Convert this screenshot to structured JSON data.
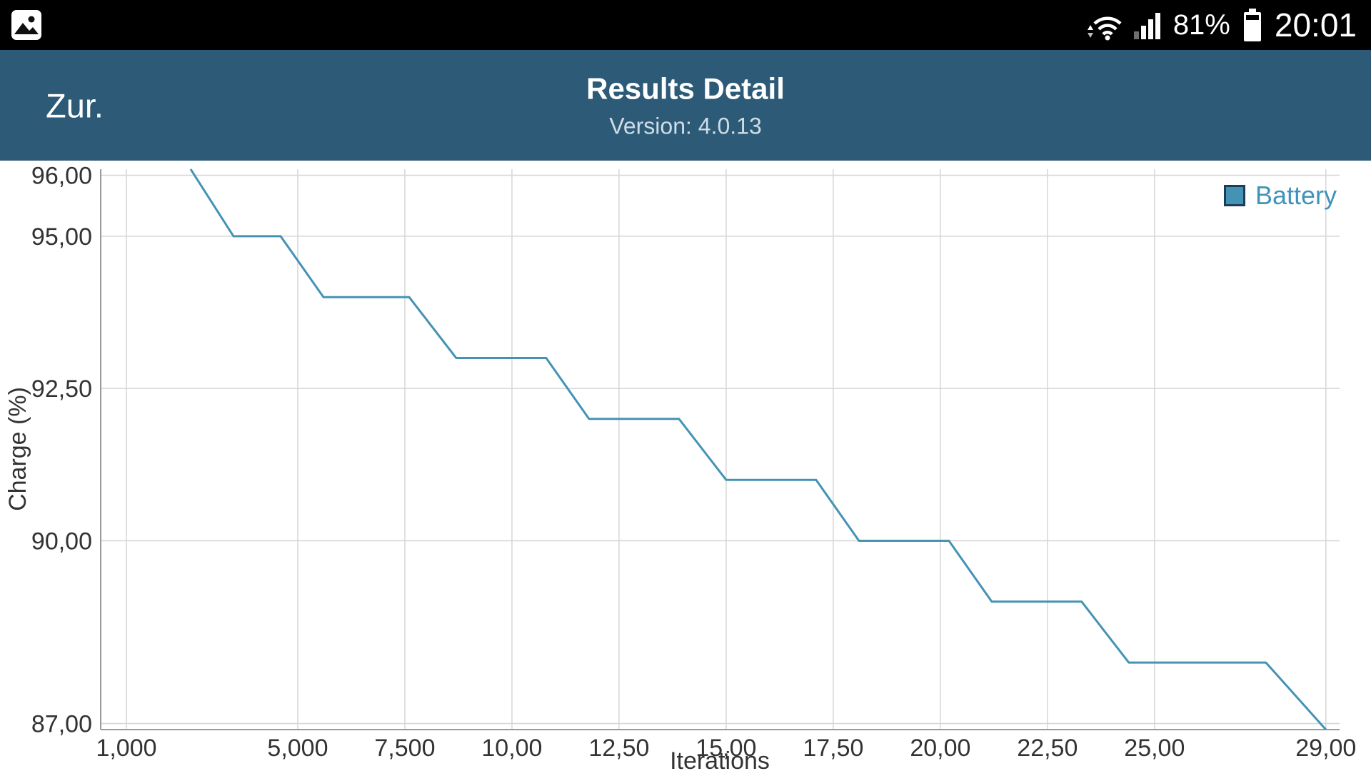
{
  "status_bar": {
    "time": "20:01",
    "battery_percent": "81%",
    "icons": {
      "left": "gallery-notification-icon",
      "right": [
        "wifi-icon",
        "cellular-signal-icon",
        "battery-icon"
      ]
    }
  },
  "header": {
    "back_label": "Zur.",
    "title": "Results Detail",
    "subtitle": "Version: 4.0.13",
    "background": "#2d5a77"
  },
  "chart_data": {
    "type": "line",
    "title": "",
    "xlabel": "Iterations",
    "ylabel": "Charge (%)",
    "xlim": [
      400,
      29320
    ],
    "ylim": [
      86.9,
      96.1
    ],
    "grid": true,
    "legend_position": "top-right",
    "legend": [
      {
        "label": "Battery",
        "color": "#4493b5"
      }
    ],
    "colors": {
      "grid": "#d6d6d6",
      "axis": "#9a9a9a",
      "tick_text": "#333333",
      "legend_text": "#3f93b8",
      "background": "#ffffff"
    },
    "x_ticks": [
      {
        "value": 1000,
        "label": "1,000"
      },
      {
        "value": 5000,
        "label": "5,000"
      },
      {
        "value": 7500,
        "label": "7,500"
      },
      {
        "value": 10000,
        "label": "10,00"
      },
      {
        "value": 12500,
        "label": "12,50"
      },
      {
        "value": 15000,
        "label": "15,00"
      },
      {
        "value": 17500,
        "label": "17,50"
      },
      {
        "value": 20000,
        "label": "20,00"
      },
      {
        "value": 22500,
        "label": "22,50"
      },
      {
        "value": 25000,
        "label": "25,00"
      },
      {
        "value": 29000,
        "label": "29,00"
      }
    ],
    "y_ticks": [
      {
        "value": 96,
        "label": "96,00"
      },
      {
        "value": 95,
        "label": "95,00"
      },
      {
        "value": 92.5,
        "label": "92,50"
      },
      {
        "value": 90,
        "label": "90,00"
      },
      {
        "value": 87,
        "label": "87,00"
      }
    ],
    "series": [
      {
        "name": "Battery",
        "color": "#4493b5",
        "points": [
          [
            2500,
            96.1
          ],
          [
            3500,
            95
          ],
          [
            4600,
            95
          ],
          [
            5600,
            94
          ],
          [
            7600,
            94
          ],
          [
            8700,
            93
          ],
          [
            10800,
            93
          ],
          [
            11800,
            92
          ],
          [
            13900,
            92
          ],
          [
            15000,
            91
          ],
          [
            17100,
            91
          ],
          [
            18100,
            90
          ],
          [
            20200,
            90
          ],
          [
            21200,
            89
          ],
          [
            23300,
            89
          ],
          [
            24400,
            88
          ],
          [
            27600,
            88
          ],
          [
            29000,
            86.9
          ]
        ]
      }
    ]
  }
}
